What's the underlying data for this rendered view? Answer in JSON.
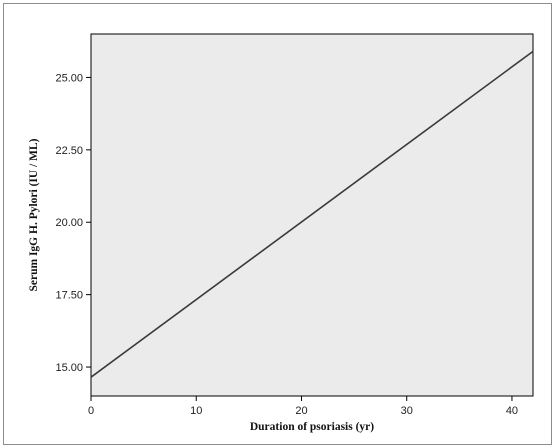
{
  "chart_data": {
    "type": "line",
    "title": "",
    "xlabel": "Duration of psoriasis (yr)",
    "ylabel": "Serum IgG H. Pylori (IU / ML)",
    "xlim": [
      0,
      42
    ],
    "ylim": [
      14.0,
      26.5
    ],
    "x_ticks": [
      0,
      10,
      20,
      30,
      40
    ],
    "x_tick_labels": [
      "0",
      "10",
      "20",
      "30",
      "40"
    ],
    "y_ticks": [
      15.0,
      17.5,
      20.0,
      22.5,
      25.0
    ],
    "y_tick_labels": [
      "15.00",
      "17.50",
      "20.00",
      "22.50",
      "25.00"
    ],
    "grid": false,
    "series": [
      {
        "x": [
          0,
          42
        ],
        "y": [
          14.65,
          25.9
        ]
      }
    ],
    "colors": {
      "plot_background": "#ebebeb",
      "line": "#3a3a3a",
      "axis": "#000000"
    }
  }
}
